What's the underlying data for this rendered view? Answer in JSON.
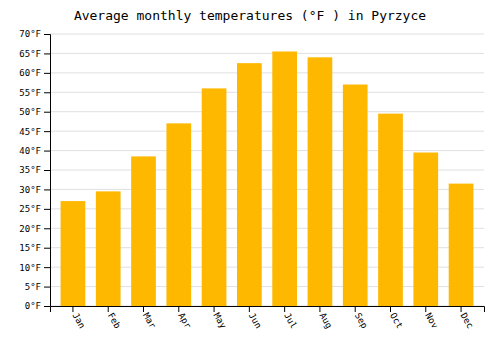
{
  "chart_data": {
    "type": "bar",
    "title": "Average monthly temperatures (°F ) in Pyrzyce",
    "categories": [
      "Jan",
      "Feb",
      "Mar",
      "Apr",
      "May",
      "Jun",
      "Jul",
      "Aug",
      "Sep",
      "Oct",
      "Nov",
      "Dec"
    ],
    "values": [
      27.0,
      29.5,
      38.5,
      47.0,
      56.0,
      62.5,
      65.5,
      64.0,
      57.0,
      49.5,
      39.5,
      31.5
    ],
    "color": "#FFB800",
    "ylim": [
      0,
      70
    ],
    "yticks": [
      {
        "value": 0,
        "label": "0°F"
      },
      {
        "value": 5,
        "label": "5°F"
      },
      {
        "value": 10,
        "label": "10°F"
      },
      {
        "value": 15,
        "label": "15°F"
      },
      {
        "value": 20,
        "label": "20°F"
      },
      {
        "value": 25,
        "label": "25°F"
      },
      {
        "value": 30,
        "label": "30°F"
      },
      {
        "value": 35,
        "label": "35°F"
      },
      {
        "value": 40,
        "label": "40°F"
      },
      {
        "value": 45,
        "label": "45°F"
      },
      {
        "value": 50,
        "label": "50°F"
      },
      {
        "value": 55,
        "label": "55°F"
      },
      {
        "value": 60,
        "label": "60°F"
      },
      {
        "value": 65,
        "label": "65°F"
      },
      {
        "value": 70,
        "label": "70°F"
      }
    ],
    "grid": true
  }
}
